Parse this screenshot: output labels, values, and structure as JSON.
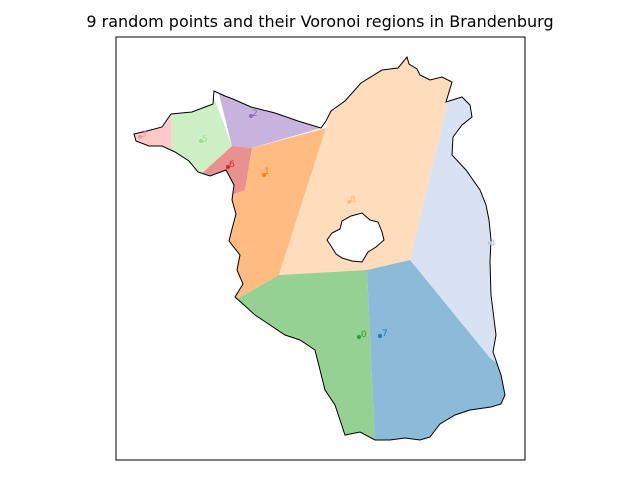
{
  "title": "9 random points and their Voronoi regions in Brandenburg",
  "regions": [
    {
      "id": "0",
      "label": "0",
      "color": "#2ca02c",
      "fill": "#96d194"
    },
    {
      "id": "1",
      "label": "1",
      "color": "#ff7f0e",
      "fill": "#ffbb80"
    },
    {
      "id": "2",
      "label": "2",
      "color": "#9467bd",
      "fill": "#c8b3df"
    },
    {
      "id": "3",
      "label": "3",
      "color": "#ff9896",
      "fill": "#ffc9c8"
    },
    {
      "id": "4",
      "label": "4",
      "color": "#aec7e8",
      "fill": "#d8e2f3"
    },
    {
      "id": "5",
      "label": "5",
      "color": "#98df8a",
      "fill": "#ccefc6"
    },
    {
      "id": "6",
      "label": "6",
      "color": "#d62728",
      "fill": "#e8918f"
    },
    {
      "id": "7",
      "label": "7",
      "color": "#1f77b4",
      "fill": "#8cbad9"
    },
    {
      "id": "8",
      "label": "8",
      "color": "#ffbb78",
      "fill": "#ffdcbc"
    }
  ]
}
